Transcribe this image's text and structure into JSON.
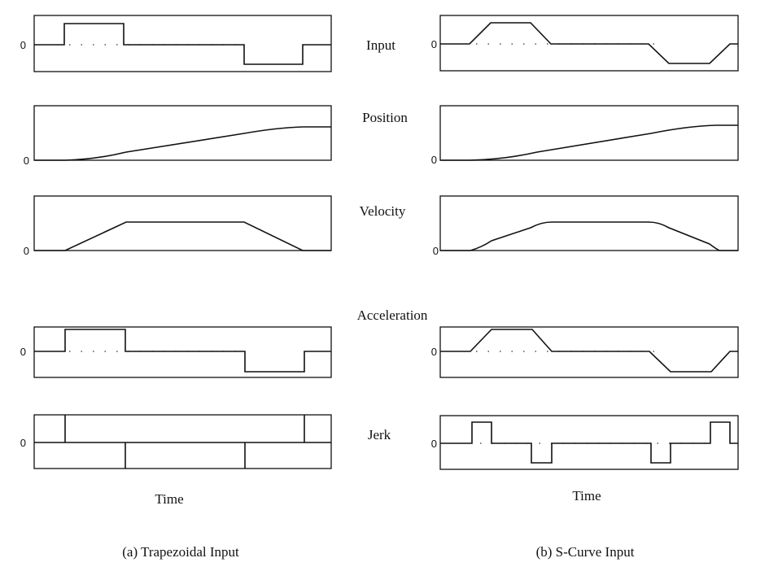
{
  "figure": {
    "time_label": "Time",
    "zero_label": "0",
    "row_labels": {
      "input": "Input",
      "position": "Position",
      "velocity": "Velocity",
      "acceleration": "Acceleration",
      "jerk": "Jerk"
    },
    "captions": {
      "trapezoidal": "(a) Trapezoidal Input",
      "s_curve": "(b) S-Curve Input"
    }
  }
}
